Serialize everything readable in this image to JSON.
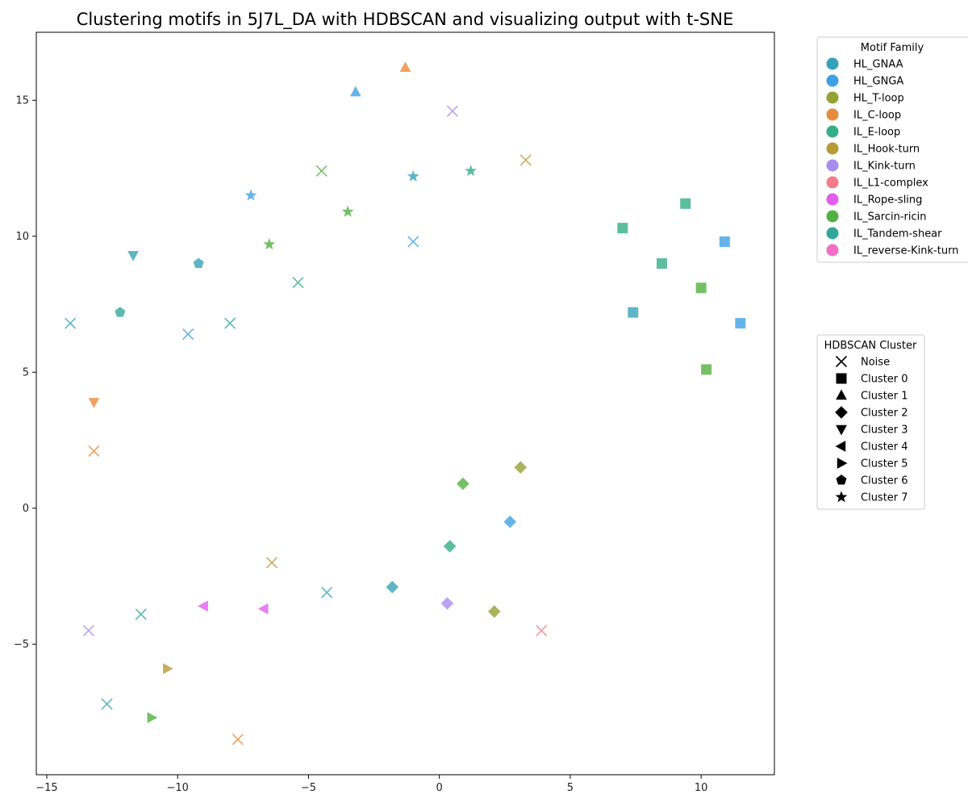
{
  "chart_data": {
    "type": "scatter",
    "title": "Clustering motifs in 5J7L_DA with HDBSCAN and visualizing output with t-SNE",
    "xlabel": "",
    "ylabel": "",
    "xlim": [
      -15.4,
      12.8
    ],
    "ylim": [
      -9.8,
      17.5
    ],
    "xticks": [
      -15,
      -10,
      -5,
      0,
      5,
      10
    ],
    "yticks": [
      -5,
      0,
      5,
      10,
      15
    ],
    "families": [
      {
        "name": "HL_GNAA",
        "color": "#36a2b9"
      },
      {
        "name": "HL_GNGA",
        "color": "#3ea1e4"
      },
      {
        "name": "HL_T-loop",
        "color": "#95a132"
      },
      {
        "name": "IL_C-loop",
        "color": "#e88a3c"
      },
      {
        "name": "IL_E-loop",
        "color": "#35ae87"
      },
      {
        "name": "IL_Hook-turn",
        "color": "#b89a37"
      },
      {
        "name": "IL_Kink-turn",
        "color": "#a78ded"
      },
      {
        "name": "IL_L1-complex",
        "color": "#f47b8a"
      },
      {
        "name": "IL_Rope-sling",
        "color": "#e15ded"
      },
      {
        "name": "IL_Sarcin-ricin",
        "color": "#52b041"
      },
      {
        "name": "IL_Tandem-shear",
        "color": "#33a79c"
      },
      {
        "name": "IL_reverse-Kink-turn",
        "color": "#f16dc6"
      }
    ],
    "clusters": [
      {
        "name": "Noise",
        "marker": "x"
      },
      {
        "name": "Cluster 0",
        "marker": "square"
      },
      {
        "name": "Cluster 1",
        "marker": "triangle-up"
      },
      {
        "name": "Cluster 2",
        "marker": "diamond"
      },
      {
        "name": "Cluster 3",
        "marker": "triangle-down"
      },
      {
        "name": "Cluster 4",
        "marker": "triangle-left"
      },
      {
        "name": "Cluster 5",
        "marker": "triangle-right"
      },
      {
        "name": "Cluster 6",
        "marker": "pentagon"
      },
      {
        "name": "Cluster 7",
        "marker": "star"
      }
    ],
    "points": [
      {
        "x": -1.3,
        "y": 16.2,
        "family": 3,
        "cluster": 2
      },
      {
        "x": -3.2,
        "y": 15.3,
        "family": 1,
        "cluster": 2
      },
      {
        "x": 0.5,
        "y": 14.6,
        "family": 6,
        "cluster": 0
      },
      {
        "x": 3.3,
        "y": 12.8,
        "family": 5,
        "cluster": 0
      },
      {
        "x": -4.5,
        "y": 12.4,
        "family": 9,
        "cluster": 0
      },
      {
        "x": 1.2,
        "y": 12.4,
        "family": 4,
        "cluster": 8
      },
      {
        "x": -1.0,
        "y": 12.2,
        "family": 0,
        "cluster": 8
      },
      {
        "x": -7.2,
        "y": 11.5,
        "family": 1,
        "cluster": 8
      },
      {
        "x": -3.5,
        "y": 10.9,
        "family": 9,
        "cluster": 8
      },
      {
        "x": 9.4,
        "y": 11.2,
        "family": 4,
        "cluster": 1
      },
      {
        "x": 7.0,
        "y": 10.3,
        "family": 4,
        "cluster": 1
      },
      {
        "x": 10.9,
        "y": 9.8,
        "family": 1,
        "cluster": 1
      },
      {
        "x": -1.0,
        "y": 9.8,
        "family": 1,
        "cluster": 0
      },
      {
        "x": -6.5,
        "y": 9.7,
        "family": 9,
        "cluster": 8
      },
      {
        "x": -11.7,
        "y": 9.3,
        "family": 0,
        "cluster": 4
      },
      {
        "x": -9.2,
        "y": 9.0,
        "family": 0,
        "cluster": 7
      },
      {
        "x": 8.5,
        "y": 9.0,
        "family": 4,
        "cluster": 1
      },
      {
        "x": -5.4,
        "y": 8.3,
        "family": 4,
        "cluster": 0
      },
      {
        "x": 10.0,
        "y": 8.1,
        "family": 9,
        "cluster": 1
      },
      {
        "x": 7.4,
        "y": 7.2,
        "family": 0,
        "cluster": 1
      },
      {
        "x": -12.2,
        "y": 7.2,
        "family": 10,
        "cluster": 7
      },
      {
        "x": 11.5,
        "y": 6.8,
        "family": 1,
        "cluster": 1
      },
      {
        "x": -14.1,
        "y": 6.8,
        "family": 0,
        "cluster": 0
      },
      {
        "x": -8.0,
        "y": 6.8,
        "family": 10,
        "cluster": 0
      },
      {
        "x": -9.6,
        "y": 6.4,
        "family": 1,
        "cluster": 0
      },
      {
        "x": 10.2,
        "y": 5.1,
        "family": 9,
        "cluster": 1
      },
      {
        "x": -13.2,
        "y": 3.9,
        "family": 3,
        "cluster": 4
      },
      {
        "x": -13.2,
        "y": 2.1,
        "family": 3,
        "cluster": 0
      },
      {
        "x": 3.1,
        "y": 1.5,
        "family": 2,
        "cluster": 3
      },
      {
        "x": 0.9,
        "y": 0.9,
        "family": 9,
        "cluster": 3
      },
      {
        "x": 2.7,
        "y": -0.5,
        "family": 1,
        "cluster": 3
      },
      {
        "x": 0.4,
        "y": -1.4,
        "family": 4,
        "cluster": 3
      },
      {
        "x": -6.4,
        "y": -2.0,
        "family": 5,
        "cluster": 0
      },
      {
        "x": -1.8,
        "y": -2.9,
        "family": 0,
        "cluster": 3
      },
      {
        "x": -4.3,
        "y": -3.1,
        "family": 0,
        "cluster": 0
      },
      {
        "x": 0.3,
        "y": -3.5,
        "family": 6,
        "cluster": 3
      },
      {
        "x": -9.0,
        "y": -3.6,
        "family": 8,
        "cluster": 5
      },
      {
        "x": -6.7,
        "y": -3.7,
        "family": 8,
        "cluster": 5
      },
      {
        "x": 2.1,
        "y": -3.8,
        "family": 2,
        "cluster": 3
      },
      {
        "x": -11.4,
        "y": -3.9,
        "family": 10,
        "cluster": 0
      },
      {
        "x": 3.9,
        "y": -4.5,
        "family": 7,
        "cluster": 0
      },
      {
        "x": -13.4,
        "y": -4.5,
        "family": 6,
        "cluster": 0
      },
      {
        "x": -10.4,
        "y": -5.9,
        "family": 5,
        "cluster": 6
      },
      {
        "x": -12.7,
        "y": -7.2,
        "family": 0,
        "cluster": 0
      },
      {
        "x": -11.0,
        "y": -7.7,
        "family": 9,
        "cluster": 6
      },
      {
        "x": -7.7,
        "y": -8.5,
        "family": 3,
        "cluster": 0
      }
    ],
    "legends": [
      {
        "title": "Motif Family",
        "kind": "family",
        "placement": "outside-upper-right"
      },
      {
        "title": "HDBSCAN Cluster",
        "kind": "cluster",
        "placement": "outside-right"
      }
    ],
    "grid": false
  }
}
